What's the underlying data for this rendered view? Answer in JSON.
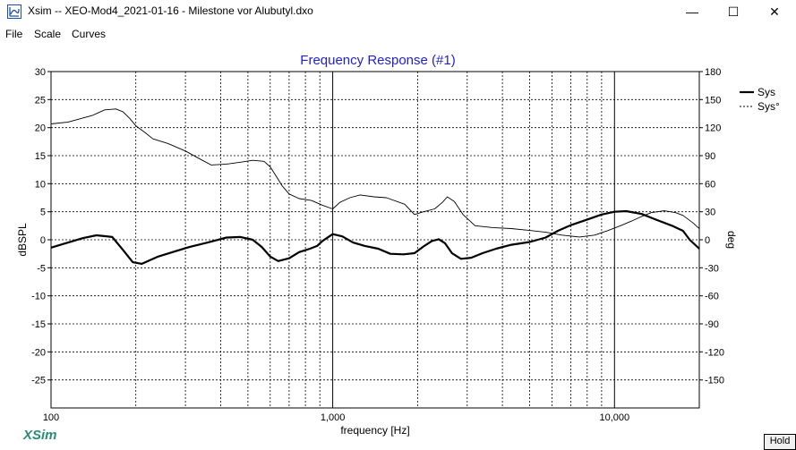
{
  "window": {
    "title": "Xsim -- XEO-Mod4_2021-01-16 - Milestone vor Alubutyl.dxo",
    "icon": "xsim-app-icon",
    "controls": {
      "minimize": "—",
      "maximize": "☐",
      "close": "✕"
    }
  },
  "menu": {
    "items": [
      "File",
      "Scale",
      "Curves"
    ]
  },
  "brand": "XSim",
  "hold_label": "Hold",
  "colors": {
    "title": "#2222cc",
    "grid": "#000000",
    "curve": "#000000",
    "brand": "#2a8a7a"
  },
  "chart_data": {
    "type": "line",
    "title": "Frequency Response (#1)",
    "xlabel": "frequency [Hz]",
    "ylabel": "dBSPL",
    "y2label": "deg",
    "xscale": "log",
    "xlim": [
      100,
      20000
    ],
    "ylim": [
      -30,
      30
    ],
    "y2lim": [
      -180,
      180
    ],
    "grid": true,
    "legend_position": "top-right",
    "x_tick_labels": [
      "100",
      "1,000",
      "10,000"
    ],
    "y_ticks": [
      30,
      25,
      20,
      15,
      10,
      5,
      0,
      -5,
      -10,
      -15,
      -20,
      -25
    ],
    "y2_ticks": [
      180,
      150,
      120,
      90,
      60,
      30,
      0,
      -30,
      -60,
      -90,
      -120,
      -150
    ],
    "series": [
      {
        "name": "Sys",
        "axis": "left",
        "style": "solid-bold",
        "points": [
          [
            100,
            -1.4
          ],
          [
            115,
            -0.5
          ],
          [
            130,
            0.3
          ],
          [
            145,
            0.8
          ],
          [
            165,
            0.5
          ],
          [
            180,
            -1.8
          ],
          [
            195,
            -4.0
          ],
          [
            210,
            -4.3
          ],
          [
            240,
            -3.0
          ],
          [
            270,
            -2.2
          ],
          [
            310,
            -1.3
          ],
          [
            360,
            -0.5
          ],
          [
            420,
            0.4
          ],
          [
            470,
            0.5
          ],
          [
            520,
            0.0
          ],
          [
            560,
            -1.3
          ],
          [
            600,
            -3.0
          ],
          [
            640,
            -3.8
          ],
          [
            700,
            -3.3
          ],
          [
            760,
            -2.2
          ],
          [
            830,
            -1.6
          ],
          [
            880,
            -1.1
          ],
          [
            920,
            -0.2
          ],
          [
            1000,
            1.0
          ],
          [
            1080,
            0.6
          ],
          [
            1180,
            -0.5
          ],
          [
            1300,
            -1.1
          ],
          [
            1450,
            -1.6
          ],
          [
            1600,
            -2.5
          ],
          [
            1780,
            -2.6
          ],
          [
            1950,
            -2.4
          ],
          [
            2100,
            -1.2
          ],
          [
            2250,
            -0.2
          ],
          [
            2380,
            0.1
          ],
          [
            2500,
            -0.6
          ],
          [
            2650,
            -2.4
          ],
          [
            2850,
            -3.4
          ],
          [
            3100,
            -3.2
          ],
          [
            3400,
            -2.4
          ],
          [
            3800,
            -1.6
          ],
          [
            4300,
            -0.9
          ],
          [
            5000,
            -0.4
          ],
          [
            5700,
            0.4
          ],
          [
            6300,
            1.6
          ],
          [
            7000,
            2.6
          ],
          [
            8000,
            3.6
          ],
          [
            9000,
            4.5
          ],
          [
            10000,
            5.0
          ],
          [
            11000,
            5.1
          ],
          [
            12500,
            4.6
          ],
          [
            14000,
            3.6
          ],
          [
            16000,
            2.5
          ],
          [
            17500,
            1.6
          ],
          [
            18500,
            0.0
          ],
          [
            20000,
            -1.6
          ]
        ]
      },
      {
        "name": "Sys°",
        "axis": "right",
        "style": "solid-thin",
        "points": [
          [
            100,
            124
          ],
          [
            115,
            126
          ],
          [
            125,
            129
          ],
          [
            140,
            133
          ],
          [
            155,
            139
          ],
          [
            170,
            140
          ],
          [
            180,
            137
          ],
          [
            190,
            130
          ],
          [
            200,
            122
          ],
          [
            215,
            115
          ],
          [
            230,
            108
          ],
          [
            260,
            103
          ],
          [
            300,
            95
          ],
          [
            340,
            86
          ],
          [
            370,
            80
          ],
          [
            420,
            81
          ],
          [
            470,
            83
          ],
          [
            520,
            85
          ],
          [
            570,
            84
          ],
          [
            600,
            78
          ],
          [
            630,
            68
          ],
          [
            660,
            58
          ],
          [
            700,
            49
          ],
          [
            760,
            44
          ],
          [
            840,
            42
          ],
          [
            920,
            37
          ],
          [
            1000,
            33
          ],
          [
            1060,
            40
          ],
          [
            1150,
            45
          ],
          [
            1250,
            48
          ],
          [
            1400,
            46
          ],
          [
            1550,
            45
          ],
          [
            1800,
            38
          ],
          [
            1950,
            27
          ],
          [
            2100,
            30
          ],
          [
            2300,
            33
          ],
          [
            2450,
            40
          ],
          [
            2550,
            46
          ],
          [
            2700,
            41
          ],
          [
            2900,
            27
          ],
          [
            3200,
            15
          ],
          [
            3700,
            13
          ],
          [
            4300,
            12
          ],
          [
            5000,
            10
          ],
          [
            5700,
            8
          ],
          [
            6500,
            5
          ],
          [
            7500,
            3
          ],
          [
            8500,
            5
          ],
          [
            9500,
            10
          ],
          [
            10500,
            15
          ],
          [
            11500,
            20
          ],
          [
            12500,
            25
          ],
          [
            13500,
            29
          ],
          [
            15000,
            31
          ],
          [
            16500,
            29
          ],
          [
            17500,
            26
          ],
          [
            19000,
            18
          ],
          [
            20000,
            12
          ]
        ]
      }
    ]
  }
}
